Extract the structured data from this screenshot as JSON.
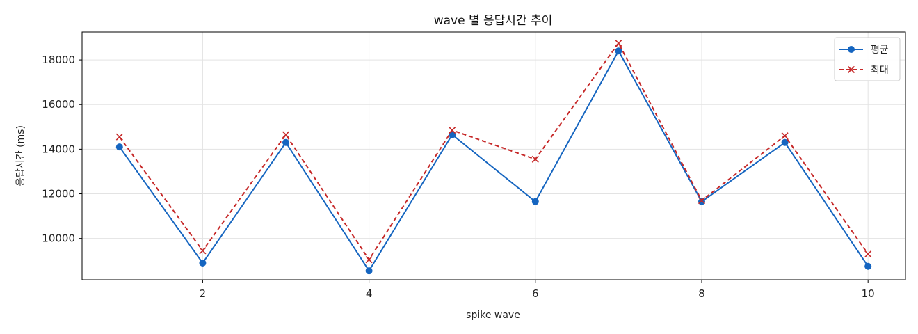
{
  "chart_data": {
    "type": "line",
    "title": "wave 별 응답시간 추이",
    "xlabel": "spike wave",
    "ylabel": "응답시간 (ms)",
    "x": [
      1,
      2,
      3,
      4,
      5,
      6,
      7,
      8,
      9,
      10
    ],
    "xlim": [
      0.55,
      10.45
    ],
    "ylim": [
      8150,
      19250
    ],
    "xticks": [
      2,
      4,
      6,
      8,
      10
    ],
    "yticks": [
      10000,
      12000,
      14000,
      16000,
      18000
    ],
    "grid": true,
    "legend_position": "top-right",
    "series": [
      {
        "name": "평균",
        "color": "#1565c0",
        "line_style": "solid",
        "marker": "circle",
        "values": [
          14100,
          8900,
          14300,
          8550,
          14650,
          11650,
          18400,
          11650,
          14300,
          8750
        ]
      },
      {
        "name": "최대",
        "color": "#c62828",
        "line_style": "dashed",
        "marker": "x",
        "values": [
          14550,
          9450,
          14650,
          9050,
          14850,
          13550,
          18750,
          11700,
          14600,
          9300
        ]
      }
    ]
  }
}
